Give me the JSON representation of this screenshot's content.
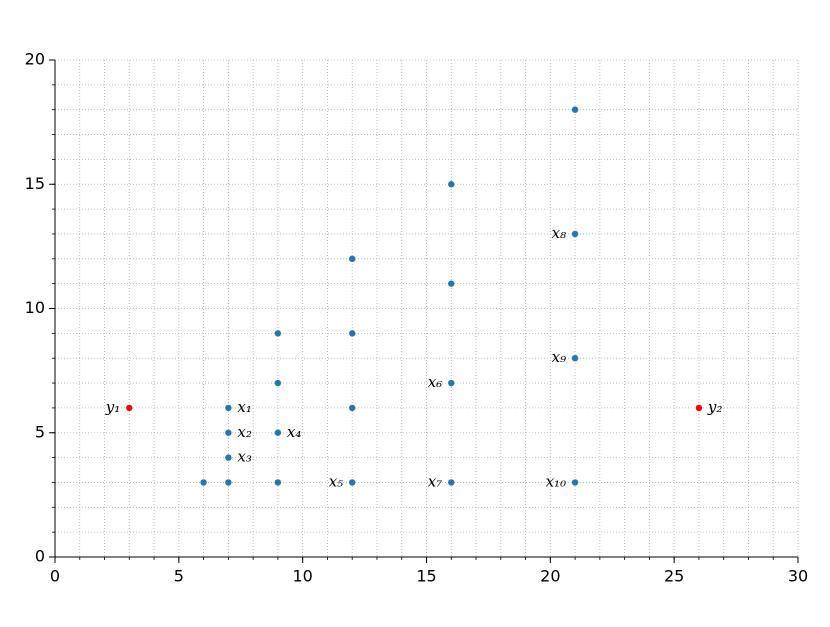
{
  "chart_data": {
    "type": "scatter",
    "xlim": [
      0,
      30
    ],
    "ylim": [
      0,
      20
    ],
    "xticks": [
      0,
      5,
      10,
      15,
      20,
      25,
      30
    ],
    "yticks": [
      0,
      5,
      10,
      15,
      20
    ],
    "x_minor_ticks": [
      0,
      1,
      2,
      3,
      4,
      5,
      6,
      7,
      8,
      9,
      10,
      11,
      12,
      13,
      14,
      15,
      16,
      17,
      18,
      19,
      20,
      21,
      22,
      23,
      24,
      25,
      26,
      27,
      28,
      29,
      30
    ],
    "y_minor_ticks": [
      0,
      1,
      2,
      3,
      4,
      5,
      6,
      7,
      8,
      9,
      10,
      11,
      12,
      13,
      14,
      15,
      16,
      17,
      18,
      19,
      20
    ],
    "grid": "minor-dotted",
    "series": [
      {
        "color": "#1f77b4",
        "x": [
          21,
          16,
          21,
          12,
          16,
          9,
          12,
          21,
          9,
          16,
          7,
          12,
          7,
          9,
          7,
          6,
          7,
          9,
          12,
          16,
          21
        ],
        "y": [
          18,
          15,
          13,
          12,
          11,
          9,
          9,
          8,
          7,
          7,
          6,
          6,
          5,
          5,
          4,
          3,
          3,
          3,
          3,
          3,
          3
        ],
        "labels": [
          null,
          null,
          "x₈",
          null,
          null,
          null,
          null,
          "x₉",
          null,
          "x₆",
          "x₁",
          null,
          "x₂",
          "x₄",
          "x₃",
          null,
          null,
          null,
          "x₅",
          "x₇",
          "x₁₀"
        ],
        "label_sides": [
          null,
          null,
          "left",
          null,
          null,
          null,
          null,
          "left",
          null,
          "left",
          "right",
          null,
          "right",
          "right",
          "right",
          null,
          null,
          null,
          "left",
          "left",
          "left"
        ]
      },
      {
        "color": "#ff0000",
        "x": [
          3,
          26
        ],
        "y": [
          6,
          6
        ],
        "labels": [
          "y₁",
          "y₂"
        ],
        "label_sides": [
          "left",
          "right"
        ]
      }
    ]
  }
}
